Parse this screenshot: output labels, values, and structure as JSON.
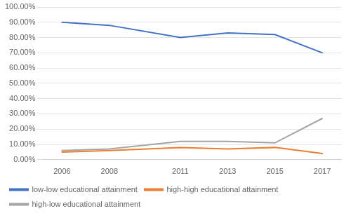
{
  "chart_data": {
    "type": "line",
    "x": [
      2006,
      2008,
      2011,
      2013,
      2015,
      2017
    ],
    "series": [
      {
        "name": "low-low educational attainment",
        "color": "#4472C4",
        "values": [
          0.9,
          0.88,
          0.8,
          0.83,
          0.82,
          0.7
        ]
      },
      {
        "name": "high-high educational attainment",
        "color": "#ED7D31",
        "values": [
          0.05,
          0.06,
          0.08,
          0.07,
          0.08,
          0.04
        ]
      },
      {
        "name": "high-low educational attainment",
        "color": "#A5A5A5",
        "values": [
          0.06,
          0.07,
          0.12,
          0.12,
          0.11,
          0.27
        ]
      }
    ],
    "xlim": [
      2005.2,
      2017.8
    ],
    "xticks": [
      2006,
      2008,
      2011,
      2013,
      2015,
      2017
    ],
    "ylim": [
      0.0,
      1.0
    ],
    "yticks": [
      {
        "value": 0.0,
        "label": "0.00%"
      },
      {
        "value": 0.1,
        "label": "10.00%"
      },
      {
        "value": 0.2,
        "label": "20.00%"
      },
      {
        "value": 0.3,
        "label": "30.00%"
      },
      {
        "value": 0.4,
        "label": "40.00%"
      },
      {
        "value": 0.5,
        "label": "50.00%"
      },
      {
        "value": 0.6,
        "label": "60.00%"
      },
      {
        "value": 0.7,
        "label": "70.00%"
      },
      {
        "value": 0.8,
        "label": "80.00%"
      },
      {
        "value": 0.9,
        "label": "90.00%"
      },
      {
        "value": 1.0,
        "label": "100.00%"
      }
    ],
    "grid": true,
    "legend": "bottom"
  }
}
